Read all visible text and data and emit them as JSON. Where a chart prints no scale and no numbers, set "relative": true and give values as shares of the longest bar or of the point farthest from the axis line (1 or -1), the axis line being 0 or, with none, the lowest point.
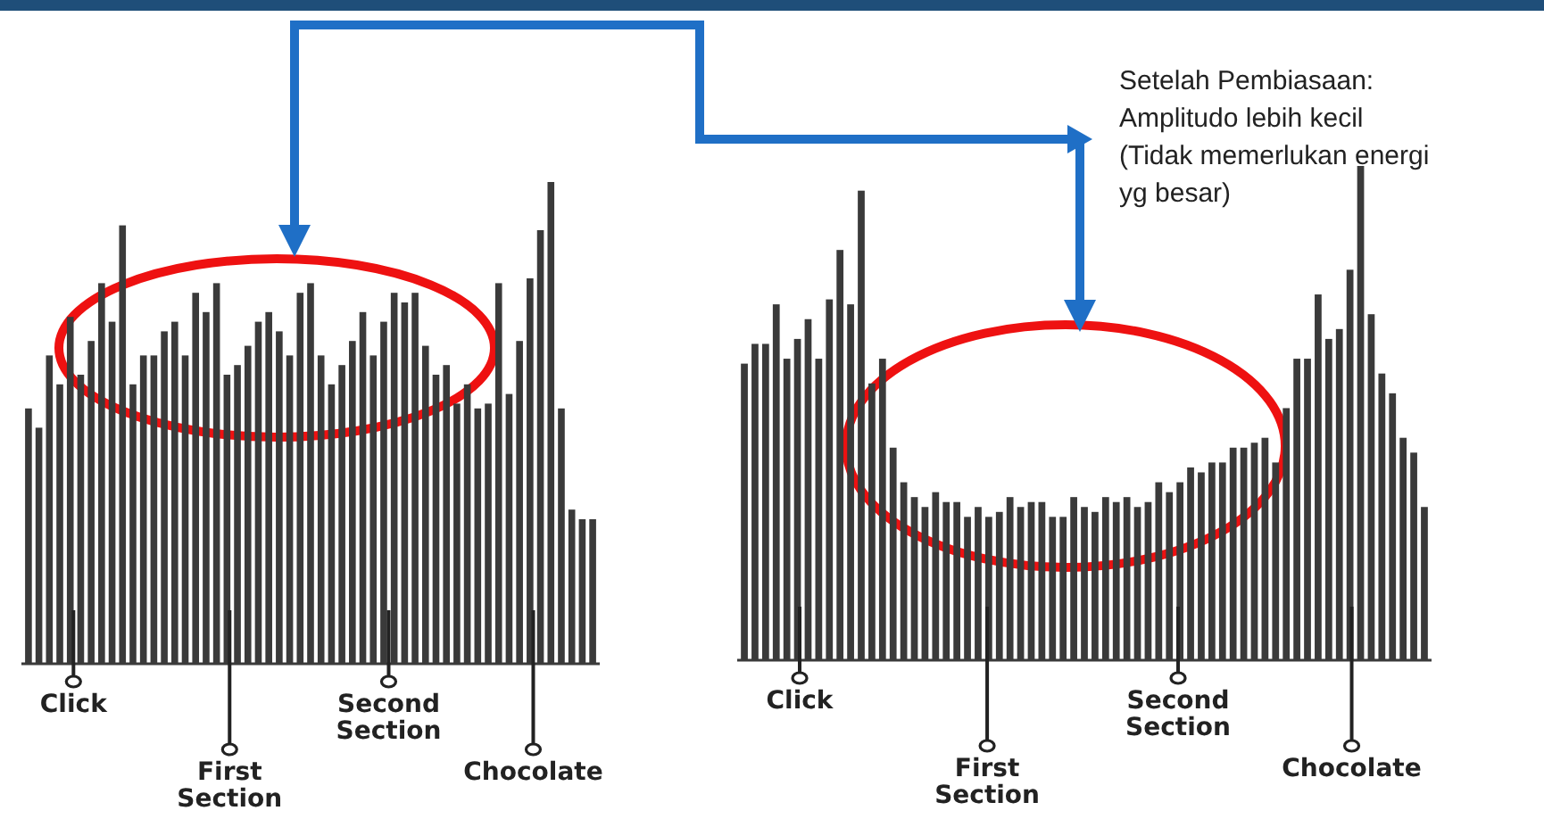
{
  "chart_data": [
    {
      "type": "bar",
      "relative": true,
      "color": "#3a3a3a",
      "categories": [
        null,
        null,
        null,
        null,
        null,
        null,
        null,
        null,
        null,
        null,
        null,
        null,
        null,
        null,
        null,
        null,
        null,
        null,
        null,
        null,
        null,
        null,
        null,
        null,
        null,
        null,
        null,
        null,
        null,
        null,
        null,
        null,
        null,
        null,
        null,
        null,
        null,
        null,
        null,
        null,
        null,
        null,
        null,
        null,
        null,
        null,
        null,
        null,
        null,
        null,
        null,
        null,
        null,
        null,
        null
      ],
      "values": [
        0.53,
        0.49,
        0.64,
        0.58,
        0.72,
        0.6,
        0.67,
        0.79,
        0.71,
        0.91,
        0.58,
        0.64,
        0.64,
        0.69,
        0.71,
        0.64,
        0.77,
        0.73,
        0.79,
        0.6,
        0.62,
        0.66,
        0.71,
        0.73,
        0.69,
        0.64,
        0.77,
        0.79,
        0.64,
        0.58,
        0.62,
        0.67,
        0.73,
        0.64,
        0.71,
        0.77,
        0.75,
        0.77,
        0.66,
        0.6,
        0.62,
        0.54,
        0.58,
        0.53,
        0.54,
        0.79,
        0.56,
        0.67,
        0.8,
        0.9,
        1,
        0.53,
        0.32,
        0.3,
        0.3
      ],
      "annotations": [
        "Click",
        "First Section",
        "Second Section",
        "Chocolate"
      ]
    },
    {
      "type": "bar",
      "relative": true,
      "color": "#3a3a3a",
      "categories": [
        null,
        null,
        null,
        null,
        null,
        null,
        null,
        null,
        null,
        null,
        null,
        null,
        null,
        null,
        null,
        null,
        null,
        null,
        null,
        null,
        null,
        null,
        null,
        null,
        null,
        null,
        null,
        null,
        null,
        null,
        null,
        null,
        null,
        null,
        null,
        null,
        null,
        null,
        null,
        null,
        null,
        null,
        null,
        null,
        null,
        null,
        null,
        null,
        null,
        null,
        null,
        null,
        null,
        null,
        null,
        null,
        null,
        null,
        null,
        null,
        null,
        null,
        null,
        null,
        null
      ],
      "values": [
        0.6,
        0.64,
        0.64,
        0.72,
        0.61,
        0.65,
        0.69,
        0.61,
        0.73,
        0.83,
        0.72,
        0.95,
        0.56,
        0.61,
        0.43,
        0.36,
        0.33,
        0.31,
        0.34,
        0.32,
        0.32,
        0.29,
        0.31,
        0.29,
        0.3,
        0.33,
        0.31,
        0.32,
        0.32,
        0.29,
        0.29,
        0.33,
        0.31,
        0.3,
        0.33,
        0.32,
        0.33,
        0.31,
        0.32,
        0.36,
        0.34,
        0.36,
        0.39,
        0.38,
        0.4,
        0.4,
        0.43,
        0.43,
        0.44,
        0.45,
        0.4,
        0.51,
        0.61,
        0.61,
        0.74,
        0.65,
        0.67,
        0.79,
        1,
        0.7,
        0.58,
        0.54,
        0.45,
        0.42,
        0.31
      ],
      "annotations": [
        "Click",
        "First Section",
        "Second Section",
        "Chocolate",
        "Setelah Pembiasaan: Amplitudo lebih kecil (Tidak memerlukan energi yg besar)"
      ]
    }
  ]
}
